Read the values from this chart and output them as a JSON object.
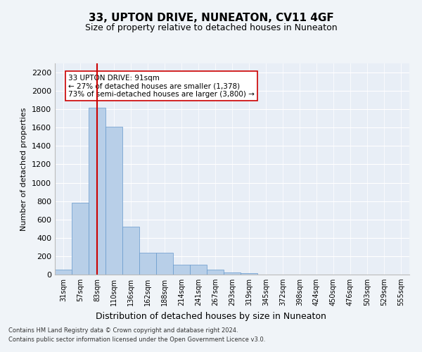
{
  "title": "33, UPTON DRIVE, NUNEATON, CV11 4GF",
  "subtitle": "Size of property relative to detached houses in Nuneaton",
  "xlabel": "Distribution of detached houses by size in Nuneaton",
  "ylabel": "Number of detached properties",
  "categories": [
    "31sqm",
    "57sqm",
    "83sqm",
    "110sqm",
    "136sqm",
    "162sqm",
    "188sqm",
    "214sqm",
    "241sqm",
    "267sqm",
    "293sqm",
    "319sqm",
    "345sqm",
    "372sqm",
    "398sqm",
    "424sqm",
    "450sqm",
    "476sqm",
    "503sqm",
    "529sqm",
    "555sqm"
  ],
  "values": [
    50,
    780,
    1820,
    1610,
    520,
    235,
    235,
    105,
    105,
    55,
    25,
    15,
    0,
    0,
    0,
    0,
    0,
    0,
    0,
    0,
    0
  ],
  "bar_color": "#b8cfe8",
  "bar_edge_color": "#6699cc",
  "vline_x": 2,
  "vline_color": "#cc0000",
  "annotation_text": "33 UPTON DRIVE: 91sqm\n← 27% of detached houses are smaller (1,378)\n73% of semi-detached houses are larger (3,800) →",
  "annotation_box_color": "#ffffff",
  "annotation_box_edge": "#cc0000",
  "ylim": [
    0,
    2300
  ],
  "yticks": [
    0,
    200,
    400,
    600,
    800,
    1000,
    1200,
    1400,
    1600,
    1800,
    2000,
    2200
  ],
  "footer1": "Contains HM Land Registry data © Crown copyright and database right 2024.",
  "footer2": "Contains public sector information licensed under the Open Government Licence v3.0.",
  "background_color": "#f0f4f8",
  "plot_bg_color": "#e8eef6",
  "title_fontsize": 11,
  "subtitle_fontsize": 9,
  "xlabel_fontsize": 9,
  "ylabel_fontsize": 8,
  "tick_fontsize": 8,
  "xtick_fontsize": 7,
  "footer_fontsize": 6,
  "annot_fontsize": 7.5
}
